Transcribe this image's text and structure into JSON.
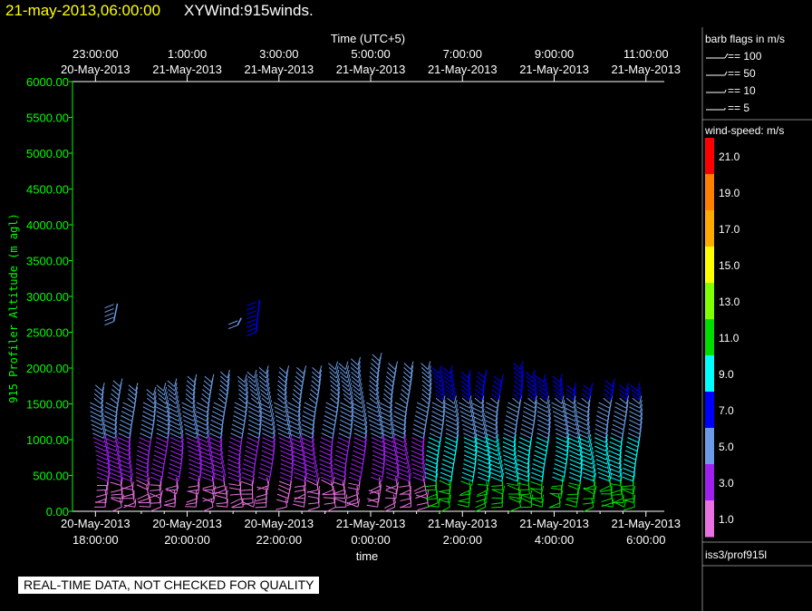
{
  "header": {
    "datetime": "21-may-2013,06:00:00",
    "product": "XYWind:915winds."
  },
  "quality_note": "REAL-TIME DATA, NOT CHECKED FOR QUALITY",
  "barb_legend": {
    "title": "barb flags in m/s",
    "entries": [
      "== 100",
      "== 50",
      "== 10",
      "== 5"
    ]
  },
  "colorbar": {
    "title": "wind-speed: m/s",
    "levels": [
      {
        "label": "21.0",
        "color": "#ff0000"
      },
      {
        "label": "19.0",
        "color": "#ff7f00"
      },
      {
        "label": "17.0",
        "color": "#ffaa00"
      },
      {
        "label": "15.0",
        "color": "#ffff00"
      },
      {
        "label": "13.0",
        "color": "#7fff00"
      },
      {
        "label": "11.0",
        "color": "#00dd00"
      },
      {
        "label": "9.0",
        "color": "#00ffff"
      },
      {
        "label": "7.0",
        "color": "#0000ff"
      },
      {
        "label": "5.0",
        "color": "#6b9be6"
      },
      {
        "label": "3.0",
        "color": "#a020f0"
      },
      {
        "label": "1.0",
        "color": "#e870e0"
      }
    ]
  },
  "station": "iss3/prof915l",
  "chart_data": {
    "type": "scatter",
    "xlabel": "time",
    "ylabel": "915 Profiler Altitude (m agl)",
    "x2label": "Time (UTC+5)",
    "ylim": [
      0,
      6000
    ],
    "yticks": [
      "0.00",
      "500.00",
      "1000.00",
      "1500.00",
      "2000.00",
      "2500.00",
      "3000.00",
      "3500.00",
      "4000.00",
      "4500.00",
      "5000.00",
      "5500.00",
      "6000.00"
    ],
    "xticks": [
      {
        "date": "20-May-2013",
        "time": "18:00:00"
      },
      {
        "date": "20-May-2013",
        "time": "20:00:00"
      },
      {
        "date": "20-May-2013",
        "time": "22:00:00"
      },
      {
        "date": "21-May-2013",
        "time": "0:00:00"
      },
      {
        "date": "21-May-2013",
        "time": "2:00:00"
      },
      {
        "date": "21-May-2013",
        "time": "4:00:00"
      },
      {
        "date": "21-May-2013",
        "time": "6:00:00"
      }
    ],
    "x2ticks": [
      {
        "time": "23:00:00",
        "date": "20-May-2013"
      },
      {
        "time": "1:00:00",
        "date": "21-May-2013"
      },
      {
        "time": "3:00:00",
        "date": "21-May-2013"
      },
      {
        "time": "5:00:00",
        "date": "21-May-2013"
      },
      {
        "time": "7:00:00",
        "date": "21-May-2013"
      },
      {
        "time": "9:00:00",
        "date": "21-May-2013"
      },
      {
        "time": "11:00:00",
        "date": "21-May-2013"
      }
    ],
    "x_range_hours": [
      -0.5,
      12.4
    ],
    "profile_times_hours": [
      0.2,
      0.5,
      0.8,
      1.2,
      1.5,
      1.8,
      2.2,
      2.5,
      2.8,
      3.2,
      3.5,
      3.8,
      4.2,
      4.5,
      4.8,
      5.2,
      5.5,
      5.8,
      6.2,
      6.5,
      6.8,
      7.2,
      7.5,
      7.8,
      8.2,
      8.5,
      8.8,
      9.2,
      9.5,
      9.8,
      10.2,
      10.5,
      10.8,
      11.2,
      11.5,
      11.8
    ],
    "profile_top_m": [
      1700,
      1750,
      1700,
      1650,
      1720,
      1750,
      1800,
      1850,
      1880,
      1850,
      1900,
      1920,
      1950,
      1920,
      1950,
      2000,
      2000,
      2050,
      2100,
      2000,
      2000,
      2000,
      1950,
      1950,
      1900,
      1900,
      1850,
      2000,
      1900,
      1850,
      1800,
      1700,
      1700,
      1750,
      1700,
      1700
    ],
    "upper_segments": [
      {
        "time_h": 0.4,
        "alt_m": [
          2650,
          2900
        ],
        "color": "#6b9be6"
      },
      {
        "time_h": 3.1,
        "alt_m": [
          2600,
          2700
        ],
        "color": "#6b9be6"
      },
      {
        "time_h": 3.5,
        "alt_m": [
          2500,
          2950
        ],
        "color": "#0000ff"
      }
    ],
    "speed_colors_by_layer": [
      {
        "alt_max_m": 400,
        "early": "#e870e0",
        "late": "#00dd00"
      },
      {
        "alt_max_m": 1000,
        "early": "#a020f0",
        "late": "#00ffff"
      },
      {
        "alt_max_m": 1500,
        "early": "#6b9be6",
        "late": "#6b9be6"
      },
      {
        "alt_max_m": 2200,
        "early": "#6b9be6",
        "late": "#0000ff"
      }
    ]
  }
}
